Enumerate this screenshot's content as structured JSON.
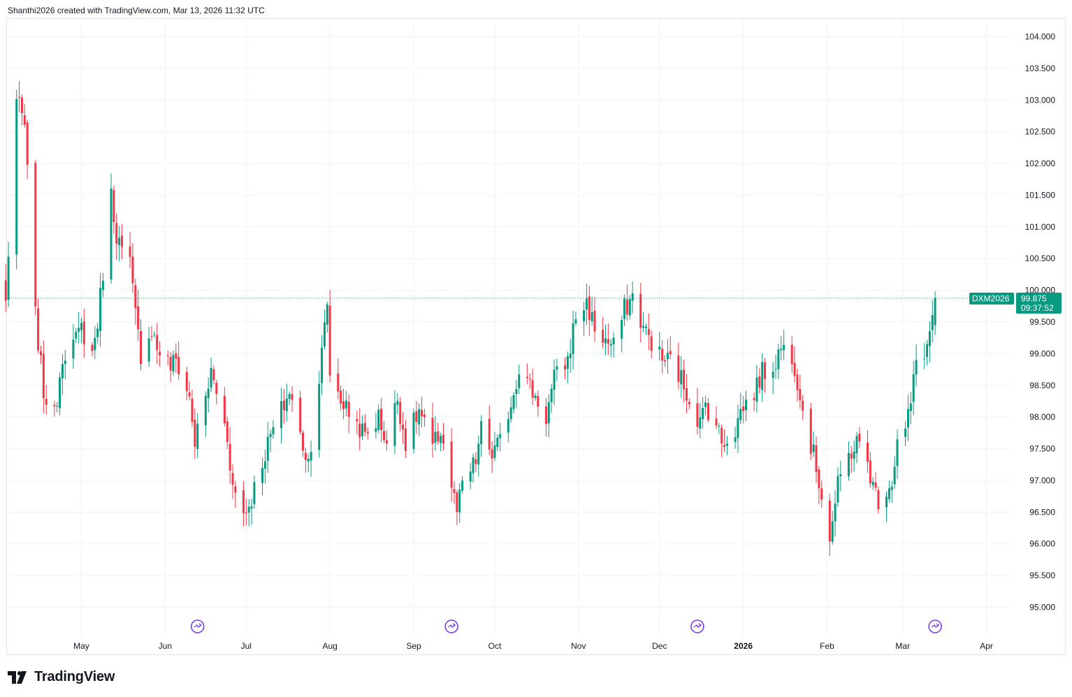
{
  "header": {
    "attribution": "Shanthi2026 created with TradingView.com, Mar 13, 2026 11:32 UTC"
  },
  "brand": {
    "name": "TradingView",
    "logo_icon": "tradingview-logo-icon"
  },
  "colors": {
    "up": "#089981",
    "down": "#f23645",
    "grid": "#f0f3fa",
    "axis_text": "#131722",
    "event": "#7b3ff2",
    "price_label": "#089981"
  },
  "chart_data": {
    "type": "candlestick",
    "symbol": "DXM2026",
    "last_price": "99.875",
    "countdown": "09:37:52",
    "y_axis": {
      "range": [
        94.6,
        104.35
      ],
      "ticks": [
        "95.000",
        "95.500",
        "96.000",
        "96.500",
        "97.000",
        "97.500",
        "98.000",
        "98.500",
        "99.000",
        "99.500",
        "100.000",
        "100.500",
        "101.000",
        "101.500",
        "102.000",
        "102.500",
        "103.000",
        "103.500",
        "104.000"
      ]
    },
    "x_axis": {
      "labels": [
        {
          "text": "May",
          "date": "2025-05-01"
        },
        {
          "text": "Jun",
          "date": "2025-06-01"
        },
        {
          "text": "Jul",
          "date": "2025-07-01"
        },
        {
          "text": "Aug",
          "date": "2025-08-01"
        },
        {
          "text": "Sep",
          "date": "2025-09-01"
        },
        {
          "text": "Oct",
          "date": "2025-10-01"
        },
        {
          "text": "Nov",
          "date": "2025-11-01"
        },
        {
          "text": "Dec",
          "date": "2025-12-01"
        },
        {
          "text": "2026",
          "date": "2026-01-01",
          "bold": true
        },
        {
          "text": "Feb",
          "date": "2026-02-01"
        },
        {
          "text": "Mar",
          "date": "2026-03-01"
        },
        {
          "text": "Apr",
          "date": "2026-04-01"
        }
      ]
    },
    "events": [
      "2025-06-13",
      "2025-09-15",
      "2025-12-15",
      "2026-03-13"
    ],
    "waypoints": [
      [
        "2025-04-03",
        99.8
      ],
      [
        "2025-04-07",
        103.0
      ],
      [
        "2025-04-10",
        102.6
      ],
      [
        "2025-04-14",
        99.6
      ],
      [
        "2025-04-17",
        98.4
      ],
      [
        "2025-04-21",
        98.0
      ],
      [
        "2025-04-24",
        99.0
      ],
      [
        "2025-04-29",
        99.2
      ],
      [
        "2025-05-01",
        99.4
      ],
      [
        "2025-05-05",
        99.0
      ],
      [
        "2025-05-07",
        99.5
      ],
      [
        "2025-05-12",
        101.5
      ],
      [
        "2025-05-14",
        100.9
      ],
      [
        "2025-05-16",
        100.6
      ],
      [
        "2025-05-19",
        100.4
      ],
      [
        "2025-05-21",
        99.6
      ],
      [
        "2025-05-23",
        99.0
      ],
      [
        "2025-05-27",
        99.4
      ],
      [
        "2025-05-29",
        99.1
      ],
      [
        "2025-06-03",
        98.8
      ],
      [
        "2025-06-05",
        98.9
      ],
      [
        "2025-06-10",
        98.3
      ],
      [
        "2025-06-12",
        97.6
      ],
      [
        "2025-06-16",
        98.3
      ],
      [
        "2025-06-18",
        98.7
      ],
      [
        "2025-06-20",
        98.4
      ],
      [
        "2025-06-24",
        97.7
      ],
      [
        "2025-06-26",
        96.9
      ],
      [
        "2025-06-30",
        96.5
      ],
      [
        "2025-07-02",
        96.6
      ],
      [
        "2025-07-07",
        97.3
      ],
      [
        "2025-07-10",
        97.7
      ],
      [
        "2025-07-14",
        98.1
      ],
      [
        "2025-07-17",
        98.4
      ],
      [
        "2025-07-21",
        97.7
      ],
      [
        "2025-07-24",
        97.3
      ],
      [
        "2025-07-28",
        98.6
      ],
      [
        "2025-07-31",
        99.8
      ],
      [
        "2025-08-01",
        98.7
      ],
      [
        "2025-08-06",
        98.2
      ],
      [
        "2025-08-11",
        97.9
      ],
      [
        "2025-08-14",
        97.7
      ],
      [
        "2025-08-19",
        98.0
      ],
      [
        "2025-08-22",
        97.6
      ],
      [
        "2025-08-26",
        98.3
      ],
      [
        "2025-08-29",
        97.6
      ],
      [
        "2025-09-03",
        98.1
      ],
      [
        "2025-09-08",
        97.5
      ],
      [
        "2025-09-11",
        97.8
      ],
      [
        "2025-09-16",
        96.7
      ],
      [
        "2025-09-17",
        96.5
      ],
      [
        "2025-09-19",
        96.9
      ],
      [
        "2025-09-24",
        97.3
      ],
      [
        "2025-09-26",
        97.8
      ],
      [
        "2025-09-30",
        97.4
      ],
      [
        "2025-10-03",
        97.6
      ],
      [
        "2025-10-08",
        98.4
      ],
      [
        "2025-10-10",
        98.8
      ],
      [
        "2025-10-15",
        98.4
      ],
      [
        "2025-10-20",
        98.0
      ],
      [
        "2025-10-23",
        98.6
      ],
      [
        "2025-10-28",
        98.9
      ],
      [
        "2025-10-31",
        99.6
      ],
      [
        "2025-11-04",
        99.8
      ],
      [
        "2025-11-07",
        99.4
      ],
      [
        "2025-11-11",
        99.2
      ],
      [
        "2025-11-14",
        99.1
      ],
      [
        "2025-11-18",
        99.7
      ],
      [
        "2025-11-21",
        99.9
      ],
      [
        "2025-11-25",
        99.4
      ],
      [
        "2025-11-28",
        99.2
      ],
      [
        "2025-12-02",
        98.9
      ],
      [
        "2025-12-05",
        98.9
      ],
      [
        "2025-12-09",
        98.6
      ],
      [
        "2025-12-12",
        98.3
      ],
      [
        "2025-12-16",
        97.9
      ],
      [
        "2025-12-18",
        98.2
      ],
      [
        "2025-12-22",
        97.9
      ],
      [
        "2025-12-24",
        97.6
      ],
      [
        "2025-12-29",
        97.8
      ],
      [
        "2025-12-31",
        98.1
      ],
      [
        "2026-01-05",
        98.4
      ],
      [
        "2026-01-08",
        98.7
      ],
      [
        "2026-01-12",
        98.8
      ],
      [
        "2026-01-15",
        99.1
      ],
      [
        "2026-01-19",
        99.0
      ],
      [
        "2026-01-22",
        98.4
      ],
      [
        "2026-01-23",
        98.1
      ],
      [
        "2026-01-27",
        97.4
      ],
      [
        "2026-01-30",
        96.8
      ],
      [
        "2026-02-02",
        96.1
      ],
      [
        "2026-02-05",
        96.9
      ],
      [
        "2026-02-09",
        97.4
      ],
      [
        "2026-02-12",
        97.6
      ],
      [
        "2026-02-16",
        97.3
      ],
      [
        "2026-02-18",
        96.9
      ],
      [
        "2026-02-20",
        96.7
      ],
      [
        "2026-02-25",
        97.0
      ],
      [
        "2026-02-27",
        97.6
      ],
      [
        "2026-03-02",
        97.8
      ],
      [
        "2026-03-04",
        98.2
      ],
      [
        "2026-03-06",
        98.9
      ],
      [
        "2026-03-10",
        99.1
      ],
      [
        "2026-03-12",
        99.6
      ],
      [
        "2026-03-13",
        99.875
      ]
    ]
  }
}
